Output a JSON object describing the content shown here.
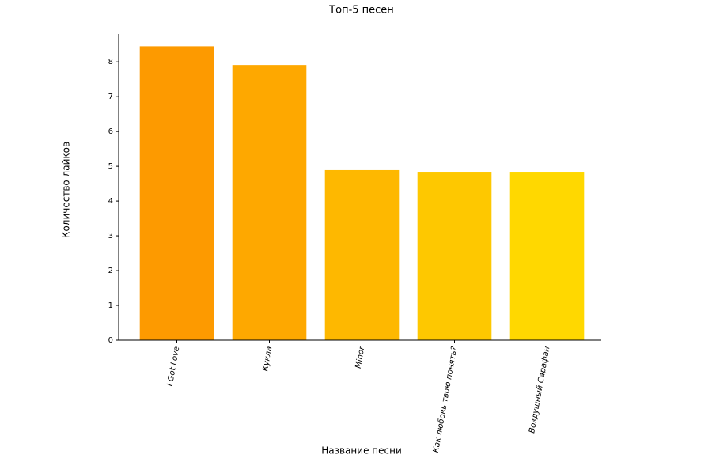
{
  "chart_data": {
    "type": "bar",
    "title": "Топ-5 песен",
    "x_label": "Название песни",
    "y_label": "Количество лайков",
    "categories": [
      "I Got Love",
      "Кукла",
      "Minor",
      "Как любовь твою понять?",
      "Воздушный Сарафан"
    ],
    "values": [
      8.45,
      7.91,
      4.89,
      4.82,
      4.82
    ],
    "colors": [
      "#fd9a00",
      "#fea800",
      "#feb800",
      "#fec800",
      "#ffd800"
    ],
    "ylim": [
      0,
      8.8
    ],
    "yticks": [
      0,
      1,
      2,
      3,
      4,
      5,
      6,
      7,
      8
    ],
    "grid": false
  }
}
